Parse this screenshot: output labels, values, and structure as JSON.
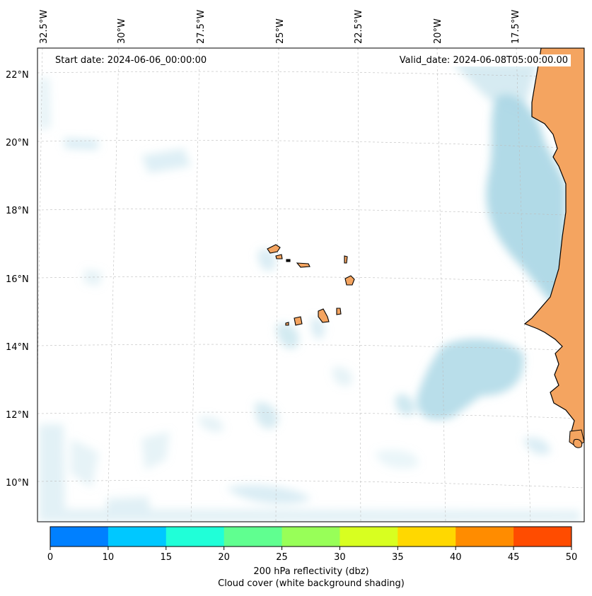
{
  "map": {
    "start_date_label": "Start date: 2024-06-06_00:00:00",
    "valid_date_label": "Valid_date: 2024-06-08T05:00:00.00",
    "lon_ticks": [
      "32.5°W",
      "30°W",
      "27.5°W",
      "25°W",
      "22.5°W",
      "20°W",
      "17.5°W"
    ],
    "lat_ticks": [
      "22°N",
      "20°N",
      "18°N",
      "16°N",
      "14°N",
      "12°N",
      "10°N"
    ],
    "land_color": "#f4a460",
    "cloud_color": "#add8e6",
    "coastline_color": "#000000",
    "gridlines": true
  },
  "colorbar": {
    "ticks": [
      "0",
      "10",
      "15",
      "20",
      "25",
      "30",
      "35",
      "40",
      "45",
      "50"
    ],
    "colors": [
      "#0080ff",
      "#00c8ff",
      "#20ffd8",
      "#60ff90",
      "#98ff58",
      "#d8ff20",
      "#ffd800",
      "#ff8c00",
      "#ff4c00"
    ],
    "label_line1": "200 hPa reflectivity (dbz)",
    "label_line2": "Cloud cover (white background shading)"
  }
}
